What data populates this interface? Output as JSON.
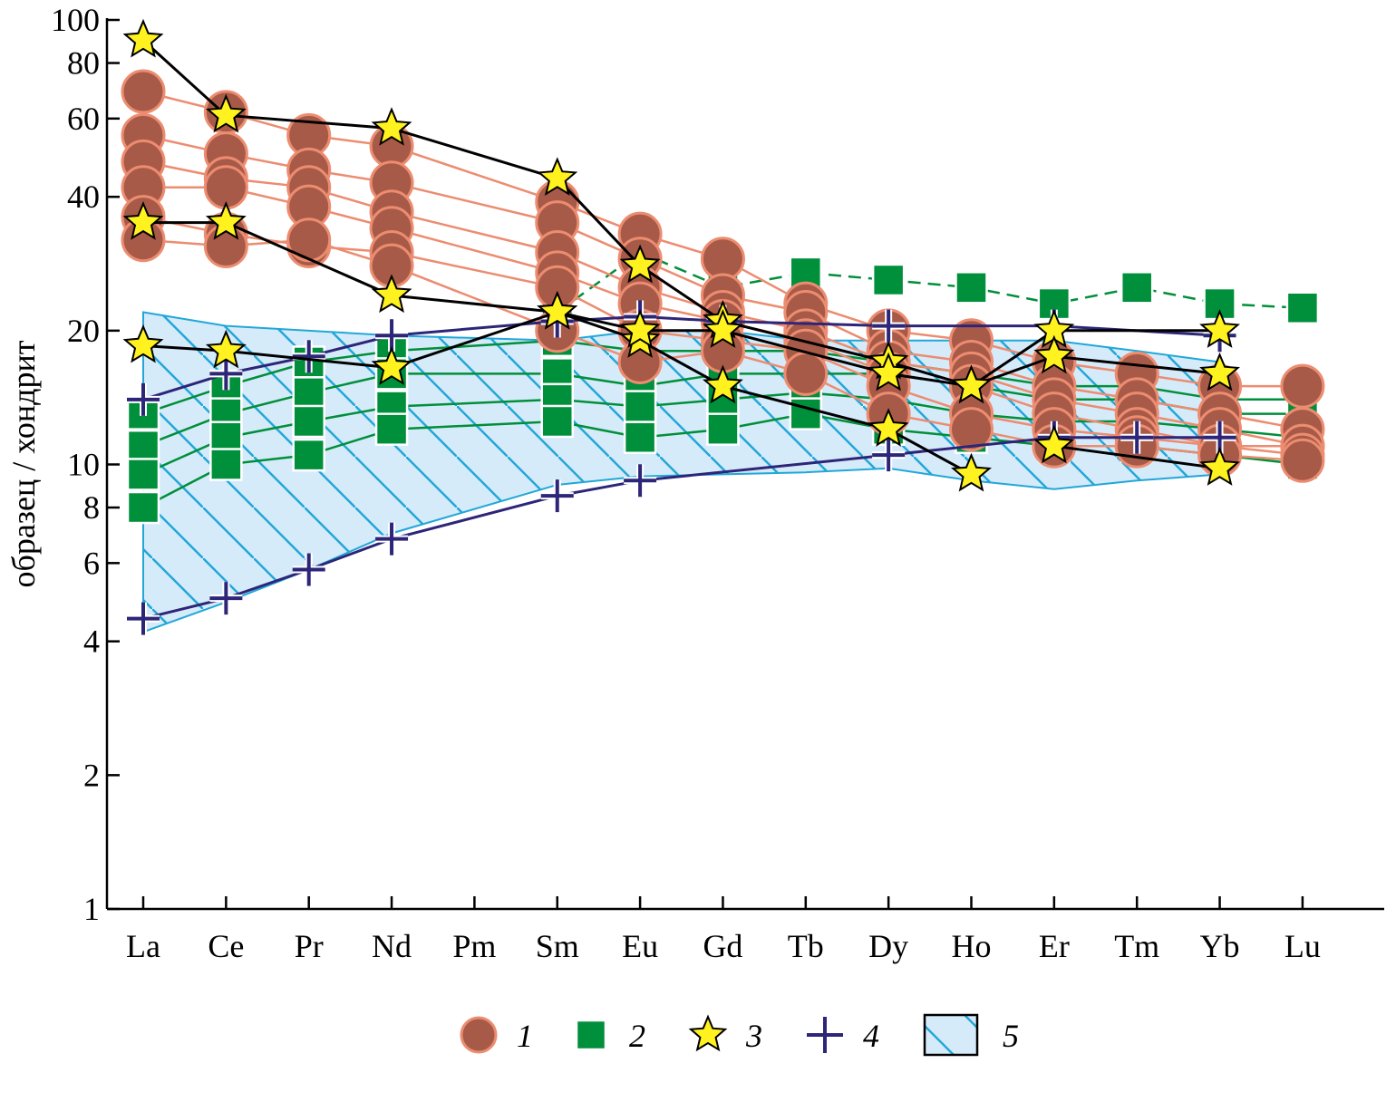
{
  "chart_data": {
    "type": "line",
    "scale": "log",
    "ylabel": "образец / хондрит",
    "ylim": [
      1,
      100
    ],
    "x_categories": [
      "La",
      "Ce",
      "Pr",
      "Nd",
      "Pm",
      "Sm",
      "Eu",
      "Gd",
      "Tb",
      "Dy",
      "Ho",
      "Er",
      "Tm",
      "Yb",
      "Lu"
    ],
    "y_ticks": [
      {
        "value": 1,
        "label": "1"
      },
      {
        "value": 2,
        "label": "2"
      },
      {
        "value": 4,
        "label": "4"
      },
      {
        "value": 6,
        "label": "6"
      },
      {
        "value": 8,
        "label": "8"
      },
      {
        "value": 10,
        "label": "10"
      },
      {
        "value": 20,
        "label": "20"
      },
      {
        "value": 40,
        "label": "40"
      },
      {
        "value": 60,
        "label": "60"
      },
      {
        "value": 80,
        "label": "80"
      },
      {
        "value": 100,
        "label": "100"
      }
    ],
    "colors": {
      "series1_fill": "#a85a48",
      "series1_edge": "#ec8c70",
      "series2_fill": "#008f3a",
      "series3_fill": "#fff21e",
      "series4_line": "#2d2578",
      "field5_fill": "#d6ebfa",
      "field5_edge": "#22a7d8"
    },
    "legend": [
      {
        "label": "1",
        "marker": "circle"
      },
      {
        "label": "2",
        "marker": "square"
      },
      {
        "label": "3",
        "marker": "star"
      },
      {
        "label": "4",
        "marker": "cross"
      },
      {
        "label": "5",
        "marker": "hatched-field"
      }
    ],
    "field5": {
      "upper": [
        [
          0,
          22
        ],
        [
          1,
          20.5
        ],
        [
          2,
          20
        ],
        [
          3,
          19.5
        ],
        [
          5,
          19
        ],
        [
          6,
          20
        ],
        [
          7,
          20
        ],
        [
          8,
          19
        ],
        [
          9,
          19
        ],
        [
          10,
          19
        ],
        [
          11,
          19
        ],
        [
          12,
          18
        ],
        [
          13,
          17
        ]
      ],
      "lower": [
        [
          0,
          4.2
        ],
        [
          1,
          4.9
        ],
        [
          2,
          5.8
        ],
        [
          3,
          7
        ],
        [
          5,
          9
        ],
        [
          6,
          9.4
        ],
        [
          7,
          9.5
        ],
        [
          8,
          9.6
        ],
        [
          9,
          9.8
        ],
        [
          10,
          9.2
        ],
        [
          11,
          8.8
        ],
        [
          12,
          9.2
        ],
        [
          13,
          9.5
        ]
      ]
    },
    "series": [
      {
        "name": "1",
        "marker": "circle",
        "points": [
          [
            0,
            69
          ],
          [
            1,
            62
          ],
          [
            2,
            55
          ],
          [
            3,
            52
          ],
          [
            5,
            39
          ],
          [
            6,
            33
          ],
          [
            7,
            29
          ],
          [
            8,
            23
          ],
          [
            9,
            20
          ],
          [
            10,
            19
          ],
          [
            11,
            17
          ],
          [
            12,
            16
          ],
          [
            13,
            15
          ],
          [
            14,
            15
          ]
        ]
      },
      {
        "name": "1",
        "marker": "circle",
        "points": [
          [
            0,
            55
          ],
          [
            1,
            50
          ],
          [
            2,
            46
          ],
          [
            3,
            43
          ],
          [
            5,
            35
          ],
          [
            6,
            29
          ],
          [
            7,
            24
          ],
          [
            8,
            22
          ],
          [
            9,
            18
          ],
          [
            10,
            17
          ],
          [
            11,
            15
          ],
          [
            12,
            14
          ],
          [
            13,
            13
          ],
          [
            14,
            12
          ]
        ]
      },
      {
        "name": "1",
        "marker": "circle",
        "points": [
          [
            0,
            48
          ],
          [
            1,
            44
          ],
          [
            2,
            42
          ],
          [
            3,
            37
          ],
          [
            5,
            30
          ],
          [
            6,
            25
          ],
          [
            7,
            22
          ],
          [
            8,
            20
          ],
          [
            9,
            17
          ],
          [
            10,
            16
          ],
          [
            11,
            14
          ],
          [
            12,
            13
          ],
          [
            13,
            12
          ],
          [
            14,
            11
          ]
        ]
      },
      {
        "name": "1",
        "marker": "circle",
        "points": [
          [
            0,
            42
          ],
          [
            1,
            42
          ],
          [
            2,
            38
          ],
          [
            3,
            34
          ],
          [
            5,
            27
          ],
          [
            6,
            23
          ],
          [
            7,
            21
          ],
          [
            8,
            19
          ],
          [
            9,
            16
          ],
          [
            10,
            15
          ],
          [
            11,
            13
          ],
          [
            12,
            12
          ],
          [
            13,
            11
          ],
          [
            14,
            11
          ]
        ]
      },
      {
        "name": "1",
        "marker": "circle",
        "points": [
          [
            0,
            36
          ],
          [
            1,
            33
          ],
          [
            2,
            31
          ],
          [
            3,
            30
          ],
          [
            5,
            25
          ],
          [
            6,
            20
          ],
          [
            7,
            19
          ],
          [
            8,
            18
          ],
          [
            9,
            15
          ],
          [
            10,
            13
          ],
          [
            11,
            12
          ],
          [
            12,
            11.5
          ],
          [
            13,
            11
          ],
          [
            14,
            10.5
          ]
        ]
      },
      {
        "name": "1",
        "marker": "circle",
        "points": [
          [
            0,
            32
          ],
          [
            1,
            31
          ],
          [
            2,
            32
          ],
          [
            3,
            28
          ],
          [
            5,
            20
          ],
          [
            6,
            17
          ],
          [
            7,
            18
          ],
          [
            8,
            16
          ],
          [
            9,
            13
          ],
          [
            10,
            12
          ],
          [
            11,
            11
          ],
          [
            12,
            11
          ],
          [
            13,
            10.5
          ],
          [
            14,
            10.2
          ]
        ]
      },
      {
        "name": "2",
        "marker": "square",
        "points": [
          [
            0,
            13
          ],
          [
            1,
            15
          ],
          [
            2,
            17
          ],
          [
            3,
            18
          ],
          [
            5,
            19
          ],
          [
            6,
            18
          ],
          [
            7,
            18
          ],
          [
            8,
            18
          ],
          [
            9,
            17
          ],
          [
            10,
            16
          ],
          [
            11,
            15
          ],
          [
            12,
            15
          ],
          [
            13,
            14
          ],
          [
            14,
            14
          ]
        ]
      },
      {
        "name": "2",
        "marker": "square",
        "points": [
          [
            0,
            11
          ],
          [
            1,
            13
          ],
          [
            2,
            14.5
          ],
          [
            3,
            16
          ],
          [
            5,
            16
          ],
          [
            6,
            15
          ],
          [
            7,
            16
          ],
          [
            8,
            16
          ],
          [
            9,
            16
          ],
          [
            10,
            15
          ],
          [
            11,
            14
          ],
          [
            12,
            14
          ],
          [
            13,
            13
          ],
          [
            14,
            13
          ]
        ]
      },
      {
        "name": "2",
        "marker": "square",
        "points": [
          [
            0,
            9.5
          ],
          [
            1,
            11.5
          ],
          [
            2,
            12.5
          ],
          [
            3,
            13.5
          ],
          [
            5,
            14
          ],
          [
            6,
            13.5
          ],
          [
            7,
            14
          ],
          [
            8,
            14.5
          ],
          [
            9,
            14
          ],
          [
            10,
            13
          ],
          [
            11,
            12.5
          ],
          [
            12,
            12.5
          ],
          [
            13,
            12
          ],
          [
            14,
            11.5
          ]
        ]
      },
      {
        "name": "2",
        "marker": "square",
        "points": [
          [
            0,
            8
          ],
          [
            1,
            10
          ],
          [
            2,
            10.5
          ],
          [
            3,
            12
          ],
          [
            5,
            12.5
          ],
          [
            6,
            11.5
          ],
          [
            7,
            12
          ],
          [
            8,
            13
          ],
          [
            9,
            12
          ],
          [
            10,
            11.5
          ],
          [
            11,
            11
          ],
          [
            12,
            11
          ],
          [
            13,
            10.5
          ],
          [
            14,
            10
          ]
        ]
      },
      {
        "name": "2",
        "marker": "square",
        "dashed": true,
        "points": [
          [
            5,
            22
          ],
          [
            6,
            30
          ],
          [
            7,
            25
          ],
          [
            8,
            27
          ],
          [
            9,
            26
          ],
          [
            10,
            25
          ],
          [
            11,
            23
          ],
          [
            12,
            25
          ],
          [
            13,
            23
          ],
          [
            14,
            22.5
          ]
        ]
      },
      {
        "name": "3",
        "marker": "star",
        "points": [
          [
            0,
            90
          ],
          [
            1,
            61
          ],
          [
            3,
            57
          ],
          [
            5,
            44
          ],
          [
            6,
            28
          ],
          [
            7,
            21
          ],
          [
            9,
            17
          ],
          [
            10,
            15
          ],
          [
            11,
            20
          ],
          [
            13,
            20
          ]
        ]
      },
      {
        "name": "3",
        "marker": "star",
        "points": [
          [
            0,
            35
          ],
          [
            1,
            35
          ],
          [
            3,
            24
          ],
          [
            5,
            22
          ],
          [
            6,
            19
          ],
          [
            7,
            15
          ],
          [
            9,
            12
          ],
          [
            10,
            9.5
          ]
        ]
      },
      {
        "name": "3",
        "marker": "star",
        "points": [
          [
            0,
            18.5
          ],
          [
            1,
            18
          ],
          [
            3,
            16.5
          ],
          [
            5,
            22
          ],
          [
            6,
            20
          ],
          [
            7,
            20
          ],
          [
            9,
            16
          ],
          [
            10,
            15
          ],
          [
            11,
            17.5
          ],
          [
            13,
            16
          ]
        ]
      },
      {
        "name": "3",
        "marker": "star",
        "points": [
          [
            11,
            11
          ],
          [
            13,
            9.8
          ]
        ]
      },
      {
        "name": "4",
        "marker": "cross",
        "points": [
          [
            0,
            14
          ],
          [
            1,
            16
          ],
          [
            2,
            17.5
          ],
          [
            3,
            19.5
          ],
          [
            5,
            21
          ],
          [
            6,
            21.5
          ],
          [
            7,
            21
          ],
          [
            9,
            20.5
          ],
          [
            11,
            20.5
          ],
          [
            13,
            19.5
          ]
        ]
      },
      {
        "name": "4",
        "marker": "cross",
        "points": [
          [
            0,
            4.5
          ],
          [
            1,
            5
          ],
          [
            2,
            5.8
          ],
          [
            3,
            6.8
          ],
          [
            5,
            8.5
          ],
          [
            6,
            9.2
          ],
          [
            9,
            10.5
          ],
          [
            11,
            11.5
          ],
          [
            12,
            11.5
          ],
          [
            13,
            11.5
          ]
        ]
      }
    ]
  }
}
